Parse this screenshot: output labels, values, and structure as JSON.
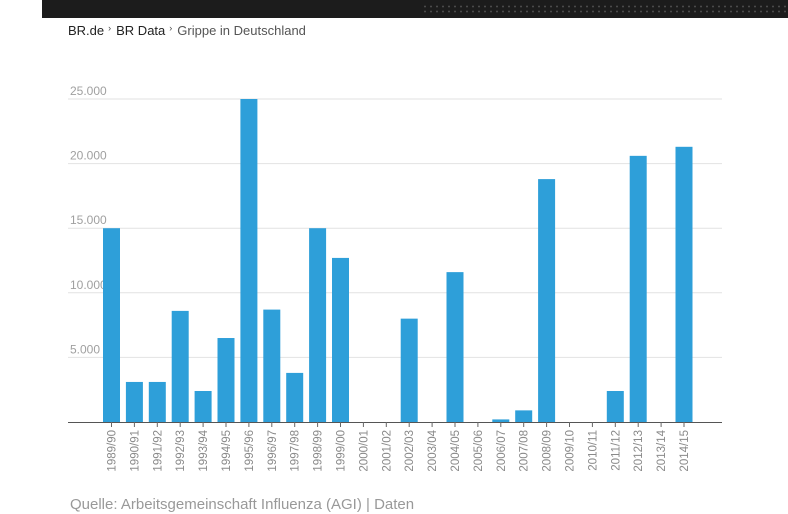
{
  "breadcrumb": {
    "items": [
      "BR.de",
      "BR Data"
    ],
    "current": "Grippe in Deutschland",
    "separator": "›"
  },
  "source": {
    "text": "Quelle: Arbeitsgemeinschaft Influenza (AGI)",
    "divider": "|",
    "link": "Daten"
  },
  "chart_data": {
    "type": "bar",
    "title": "",
    "xlabel": "",
    "ylabel": "",
    "ylim": [
      0,
      25000
    ],
    "yticks": [
      5000,
      10000,
      15000,
      20000,
      25000
    ],
    "ytick_labels": [
      "5.000",
      "10.000",
      "15.000",
      "20.000",
      "25.000"
    ],
    "grid": true,
    "bar_color": "#2e9fd9",
    "categories": [
      "1989/90",
      "1990/91",
      "1991/92",
      "1992/93",
      "1993/94",
      "1994/95",
      "1995/96",
      "1996/97",
      "1997/98",
      "1998/99",
      "1999/00",
      "2000/01",
      "2001/02",
      "2002/03",
      "2003/04",
      "2004/05",
      "2005/06",
      "2006/07",
      "2007/08",
      "2008/09",
      "2009/10",
      "2010/11",
      "2011/12",
      "2012/13",
      "2013/14",
      "2014/15"
    ],
    "values": [
      15000,
      3100,
      3100,
      8600,
      2400,
      6500,
      25000,
      8700,
      3800,
      15000,
      12700,
      0,
      0,
      8000,
      0,
      11600,
      0,
      200,
      900,
      18800,
      0,
      0,
      2400,
      20600,
      0,
      21300
    ]
  }
}
